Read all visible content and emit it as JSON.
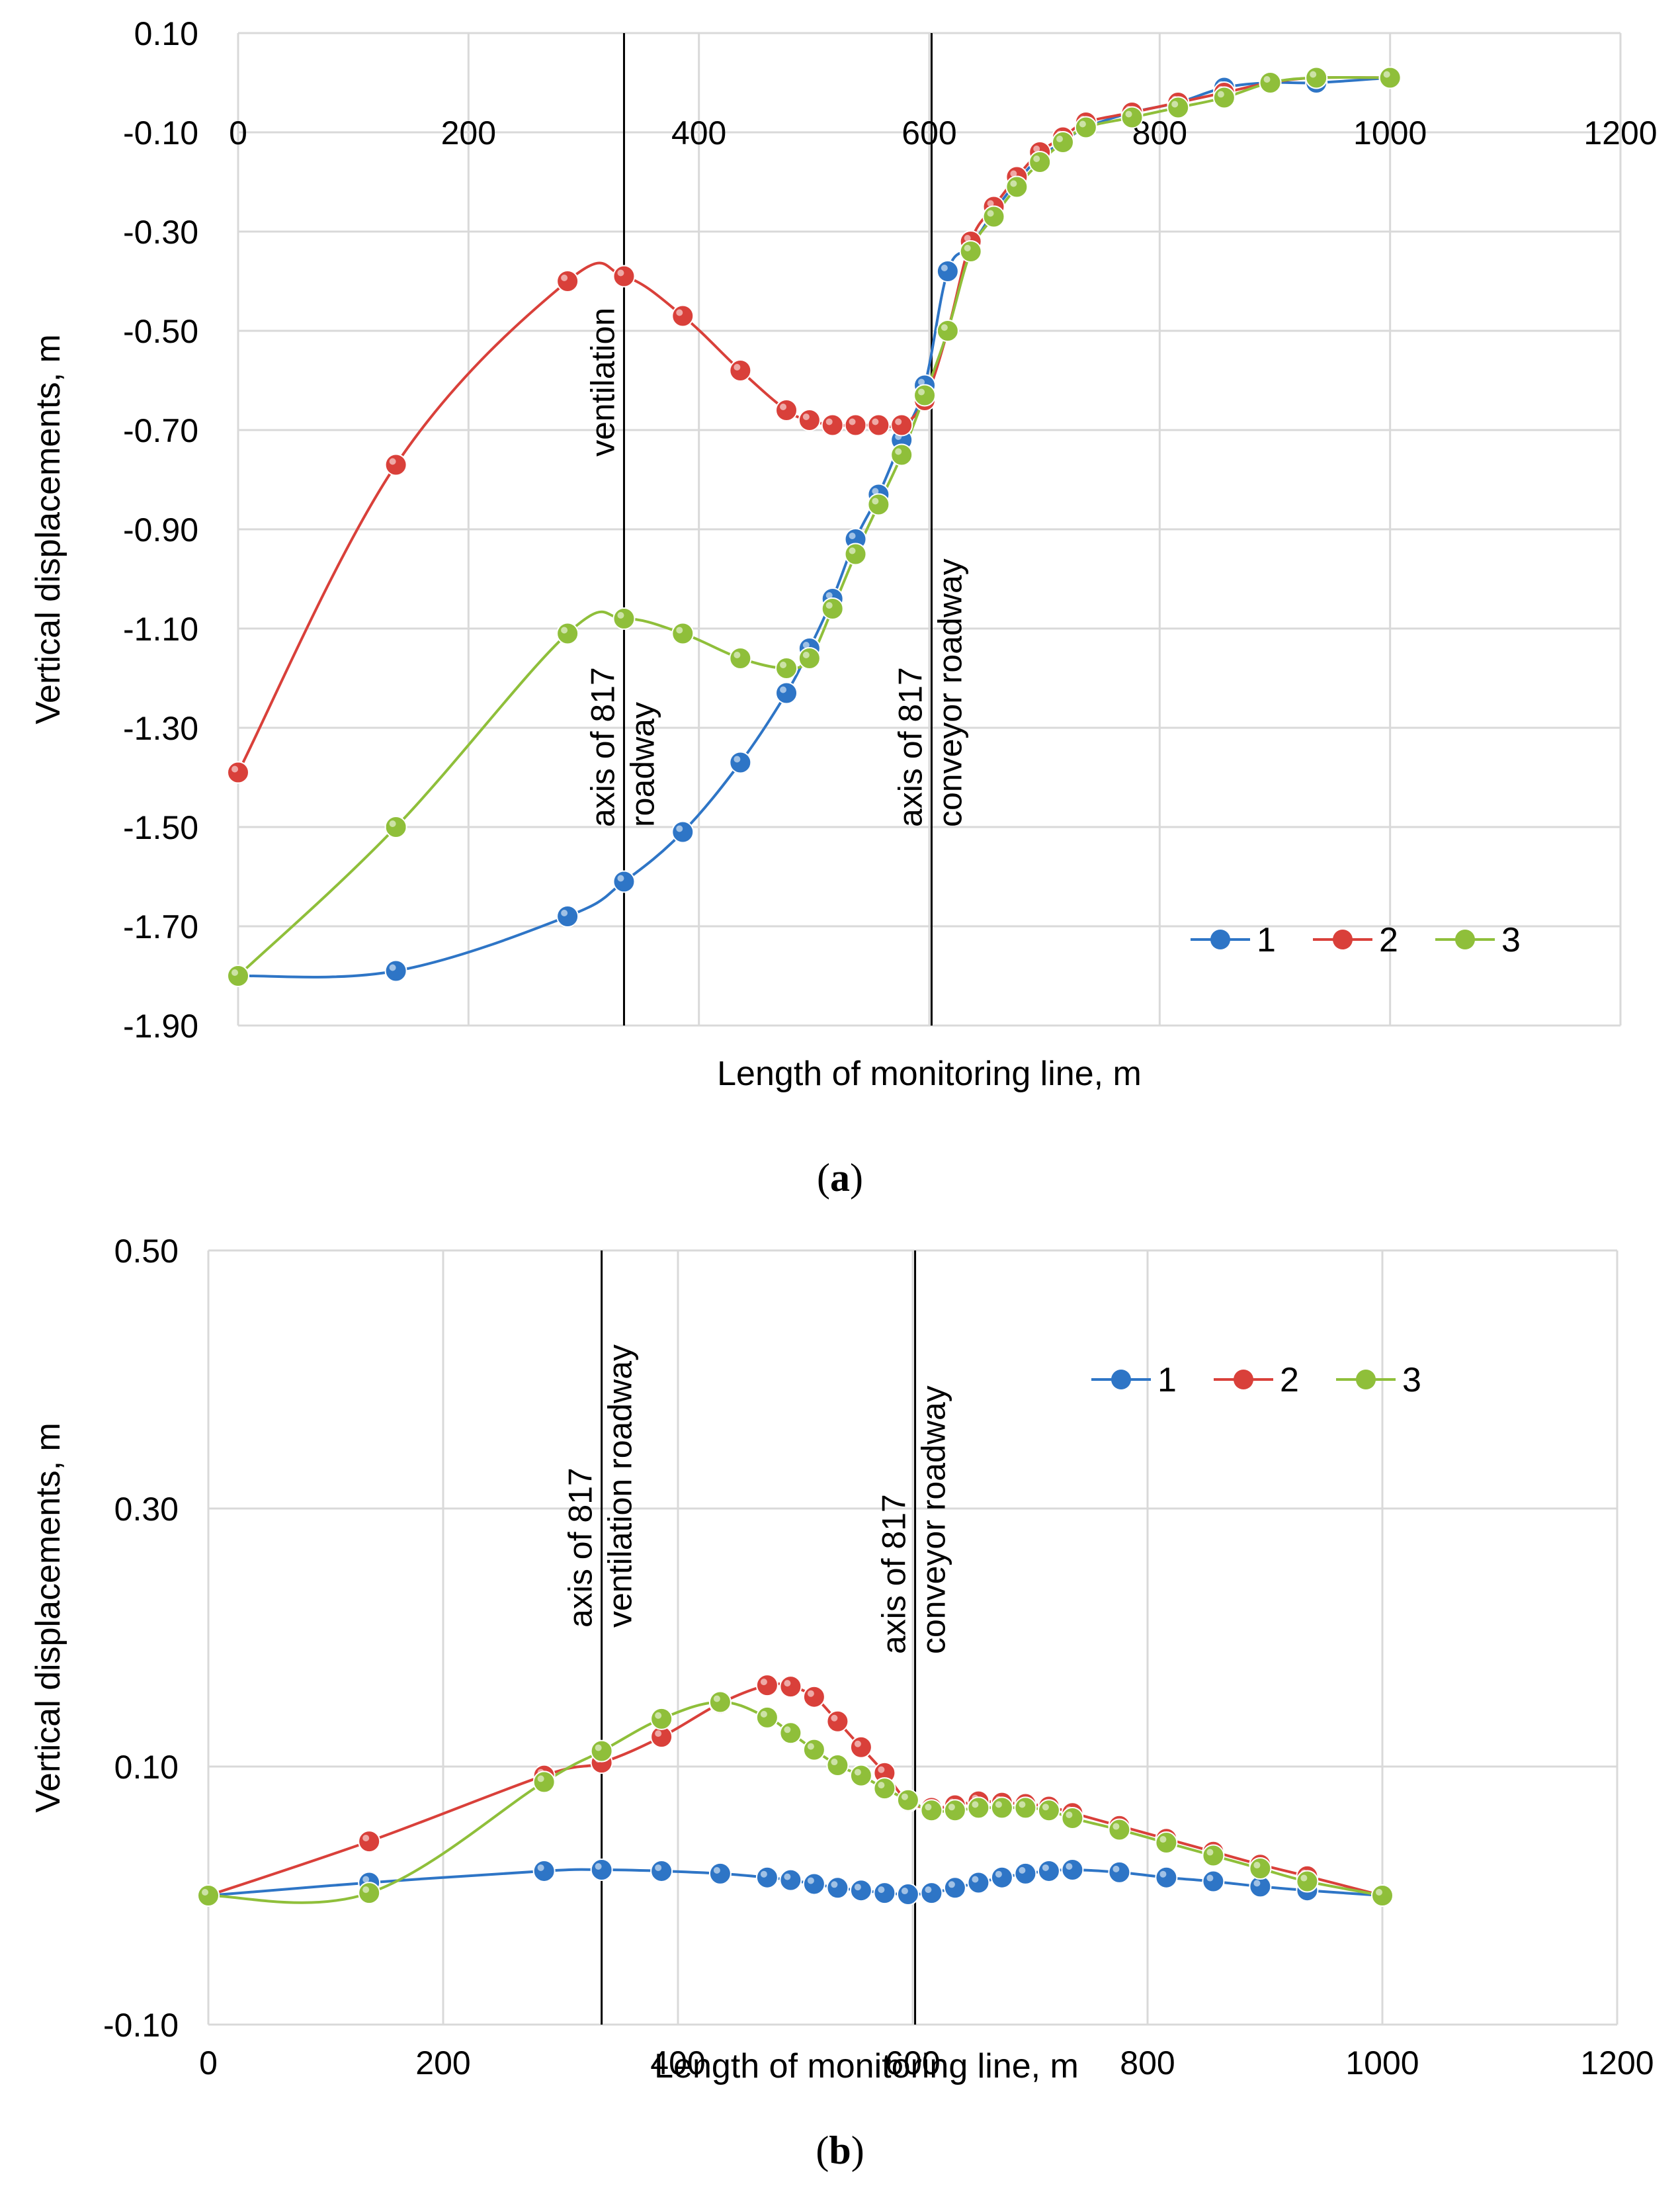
{
  "chart_data": [
    {
      "id": "a",
      "type": "line",
      "caption": "(a)",
      "caption_letter": "a",
      "xlabel": "Length of monitoring line, m",
      "ylabel": "Vertical displacements, m",
      "xlim": [
        0,
        1200
      ],
      "ylim": [
        -1.9,
        0.1
      ],
      "x_ticks": [
        "0",
        "200",
        "400",
        "600",
        "800",
        "1000",
        "1200"
      ],
      "y_ticks": [
        "0.10",
        "-0.10",
        "-0.30",
        "-0.50",
        "-0.70",
        "-0.90",
        "-1.10",
        "-1.30",
        "-1.50",
        "-1.70",
        "-1.90"
      ],
      "x_tick_values": [
        0,
        200,
        400,
        600,
        800,
        1000,
        1200
      ],
      "y_tick_values": [
        0.1,
        -0.1,
        -0.3,
        -0.5,
        -0.7,
        -0.9,
        -1.1,
        -1.3,
        -1.5,
        -1.7,
        -1.9
      ],
      "grid": true,
      "legend_position": "bottom-right",
      "annotations": [
        {
          "x": 335,
          "line1": "axis of 817",
          "line2": "ventilation",
          "line3": "roadway"
        },
        {
          "x": 602,
          "line1": "axis of 817",
          "line2": "conveyor roadway"
        }
      ],
      "series": [
        {
          "name": "1",
          "color": "#2E75C6",
          "x": [
            0,
            137,
            286,
            335,
            386,
            436,
            476,
            496,
            516,
            536,
            556,
            576,
            596,
            616,
            636,
            656,
            676,
            696,
            716,
            736,
            776,
            816,
            856,
            896,
            936,
            1000
          ],
          "y": [
            -1.8,
            -1.79,
            -1.68,
            -1.61,
            -1.51,
            -1.37,
            -1.23,
            -1.14,
            -1.04,
            -0.92,
            -0.83,
            -0.72,
            -0.61,
            -0.38,
            -0.33,
            -0.26,
            -0.2,
            -0.15,
            -0.12,
            -0.09,
            -0.06,
            -0.04,
            -0.01,
            0.0,
            0.0,
            0.01
          ]
        },
        {
          "name": "2",
          "color": "#D9403A",
          "x": [
            0,
            137,
            286,
            335,
            386,
            436,
            476,
            496,
            516,
            536,
            556,
            576,
            596,
            616,
            636,
            656,
            676,
            696,
            716,
            736,
            776,
            816,
            856,
            896,
            936,
            1000
          ],
          "y": [
            -1.39,
            -0.77,
            -0.4,
            -0.39,
            -0.47,
            -0.58,
            -0.66,
            -0.68,
            -0.69,
            -0.69,
            -0.69,
            -0.69,
            -0.64,
            -0.5,
            -0.32,
            -0.25,
            -0.19,
            -0.14,
            -0.11,
            -0.08,
            -0.06,
            -0.04,
            -0.02,
            0.0,
            0.01,
            0.01
          ]
        },
        {
          "name": "3",
          "color": "#8FBF3A",
          "x": [
            0,
            137,
            286,
            335,
            386,
            436,
            476,
            496,
            516,
            536,
            556,
            576,
            596,
            616,
            636,
            656,
            676,
            696,
            716,
            736,
            776,
            816,
            856,
            896,
            936,
            1000
          ],
          "y": [
            -1.8,
            -1.5,
            -1.11,
            -1.08,
            -1.11,
            -1.16,
            -1.18,
            -1.16,
            -1.06,
            -0.95,
            -0.85,
            -0.75,
            -0.63,
            -0.5,
            -0.34,
            -0.27,
            -0.21,
            -0.16,
            -0.12,
            -0.09,
            -0.07,
            -0.05,
            -0.03,
            0.0,
            0.01,
            0.01
          ]
        }
      ]
    },
    {
      "id": "b",
      "type": "line",
      "caption": "(b)",
      "caption_letter": "b",
      "xlabel": "Length of monitoring line, m",
      "ylabel": "Vertical displacements, m",
      "xlim": [
        0,
        1200
      ],
      "ylim": [
        -0.1,
        0.5
      ],
      "x_ticks": [
        "0",
        "200",
        "400",
        "600",
        "800",
        "1000",
        "1200"
      ],
      "y_ticks": [
        "0.50",
        "0.30",
        "0.10",
        "-0.10"
      ],
      "x_tick_values": [
        0,
        200,
        400,
        600,
        800,
        1000,
        1200
      ],
      "y_tick_values": [
        0.5,
        0.3,
        0.1,
        -0.1
      ],
      "grid": true,
      "legend_position": "top-right",
      "annotations": [
        {
          "x": 335,
          "line1": "axis of 817",
          "line2": "ventilation roadway"
        },
        {
          "x": 602,
          "line1": "axis of 817",
          "line2": "conveyor roadway"
        }
      ],
      "series": [
        {
          "name": "1",
          "color": "#2E75C6",
          "x": [
            0,
            137,
            286,
            335,
            386,
            436,
            476,
            496,
            516,
            536,
            556,
            576,
            596,
            616,
            636,
            656,
            676,
            696,
            716,
            736,
            776,
            816,
            856,
            896,
            936,
            1000
          ],
          "y": [
            0.0,
            0.01,
            0.019,
            0.02,
            0.019,
            0.017,
            0.014,
            0.012,
            0.009,
            0.006,
            0.004,
            0.002,
            0.001,
            0.002,
            0.006,
            0.01,
            0.014,
            0.017,
            0.019,
            0.02,
            0.018,
            0.014,
            0.011,
            0.007,
            0.004,
            0.0
          ]
        },
        {
          "name": "2",
          "color": "#D9403A",
          "x": [
            0,
            137,
            286,
            335,
            386,
            436,
            476,
            496,
            516,
            536,
            556,
            576,
            596,
            616,
            636,
            656,
            676,
            696,
            716,
            736,
            776,
            816,
            856,
            896,
            936,
            1000
          ],
          "y": [
            0.0,
            0.042,
            0.093,
            0.103,
            0.123,
            0.149,
            0.163,
            0.162,
            0.154,
            0.135,
            0.115,
            0.095,
            0.073,
            0.068,
            0.07,
            0.073,
            0.072,
            0.071,
            0.069,
            0.064,
            0.054,
            0.044,
            0.034,
            0.024,
            0.015,
            0.0
          ]
        },
        {
          "name": "3",
          "color": "#8FBF3A",
          "x": [
            0,
            137,
            286,
            335,
            386,
            436,
            476,
            496,
            516,
            536,
            556,
            576,
            596,
            616,
            636,
            656,
            676,
            696,
            716,
            736,
            776,
            816,
            856,
            896,
            936,
            1000
          ],
          "y": [
            0.0,
            0.002,
            0.088,
            0.112,
            0.137,
            0.15,
            0.138,
            0.126,
            0.113,
            0.101,
            0.093,
            0.083,
            0.074,
            0.066,
            0.066,
            0.068,
            0.068,
            0.068,
            0.066,
            0.06,
            0.051,
            0.041,
            0.031,
            0.021,
            0.011,
            0.0
          ]
        }
      ]
    }
  ]
}
